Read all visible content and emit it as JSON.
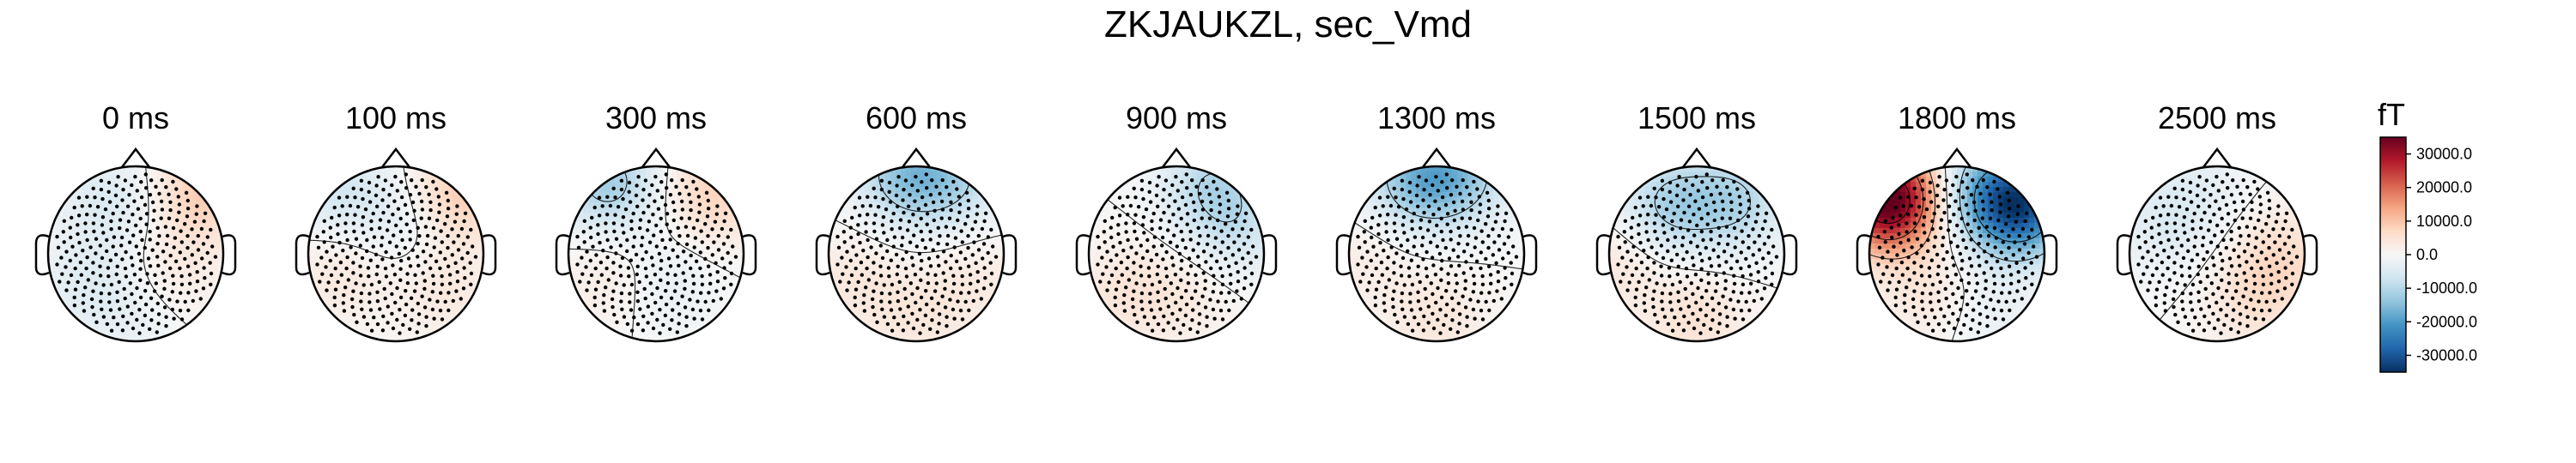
{
  "chart_data": {
    "type": "heatmap",
    "title": "ZKJAUKZL, sec_Vmd",
    "times": [
      "0 ms",
      "100 ms",
      "300 ms",
      "600 ms",
      "900 ms",
      "1300 ms",
      "1500 ms",
      "1800 ms",
      "2500 ms"
    ],
    "colorbar": {
      "unit": "fT",
      "ticks": [
        "30000.0",
        "20000.0",
        "10000.0",
        "0.0",
        "-10000.0",
        "-20000.0",
        "-30000.0"
      ],
      "tick_values": [
        30000,
        20000,
        10000,
        0,
        -10000,
        -20000,
        -30000
      ],
      "range": [
        -35000,
        35000
      ],
      "colormap": "RdBu_r"
    },
    "panels": [
      {
        "time": "0 ms",
        "sources": [
          {
            "x": 0.78,
            "y": -0.72,
            "amp": 9000
          },
          {
            "x": -0.3,
            "y": -0.6,
            "amp": -5000
          },
          {
            "x": 0.45,
            "y": 0.2,
            "amp": 3000
          },
          {
            "x": -0.55,
            "y": 0.35,
            "amp": -4000
          },
          {
            "x": 0.0,
            "y": 0.75,
            "amp": -2500
          }
        ]
      },
      {
        "time": "100 ms",
        "sources": [
          {
            "x": 0.78,
            "y": -0.72,
            "amp": 9000
          },
          {
            "x": -0.62,
            "y": -0.7,
            "amp": -6000
          },
          {
            "x": -0.6,
            "y": 0.2,
            "amp": 4000
          },
          {
            "x": 0.55,
            "y": 0.4,
            "amp": 3500
          },
          {
            "x": 0.0,
            "y": -0.3,
            "amp": -3000
          }
        ]
      },
      {
        "time": "300 ms",
        "sources": [
          {
            "x": -0.55,
            "y": -0.82,
            "amp": -12000
          },
          {
            "x": 0.68,
            "y": -0.72,
            "amp": 8000
          },
          {
            "x": 0.1,
            "y": 0.35,
            "amp": -3000
          },
          {
            "x": -0.55,
            "y": 0.3,
            "amp": 3000
          }
        ]
      },
      {
        "time": "600 ms",
        "sources": [
          {
            "x": -0.1,
            "y": -0.9,
            "amp": -13000
          },
          {
            "x": 0.45,
            "y": -0.85,
            "amp": -8000
          },
          {
            "x": -0.7,
            "y": 0.3,
            "amp": 3500
          },
          {
            "x": 0.0,
            "y": 0.75,
            "amp": 3500
          },
          {
            "x": 0.7,
            "y": 0.3,
            "amp": 3000
          }
        ]
      },
      {
        "time": "900 ms",
        "sources": [
          {
            "x": 0.4,
            "y": -0.8,
            "amp": -9000
          },
          {
            "x": 0.7,
            "y": -0.3,
            "amp": -6000
          },
          {
            "x": -0.6,
            "y": 0.45,
            "amp": 4000
          },
          {
            "x": 0.1,
            "y": 0.5,
            "amp": 3000
          }
        ]
      },
      {
        "time": "1300 ms",
        "sources": [
          {
            "x": -0.2,
            "y": -0.85,
            "amp": -14000
          },
          {
            "x": 0.3,
            "y": -0.9,
            "amp": -10000
          },
          {
            "x": 0.0,
            "y": 0.75,
            "amp": 4000
          },
          {
            "x": -0.8,
            "y": 0.1,
            "amp": 2500
          }
        ]
      },
      {
        "time": "1500 ms",
        "sources": [
          {
            "x": -0.3,
            "y": -0.55,
            "amp": -11000
          },
          {
            "x": 0.45,
            "y": -0.6,
            "amp": -10000
          },
          {
            "x": 0.0,
            "y": 0.75,
            "amp": 5000
          },
          {
            "x": -0.85,
            "y": 0.1,
            "amp": 4000
          }
        ]
      },
      {
        "time": "1800 ms",
        "sources": [
          {
            "x": -0.78,
            "y": -0.62,
            "amp": 38000
          },
          {
            "x": 0.7,
            "y": -0.55,
            "amp": -32000
          },
          {
            "x": 0.2,
            "y": -0.75,
            "amp": -8000
          },
          {
            "x": -0.3,
            "y": 0.5,
            "amp": 4000
          },
          {
            "x": 0.3,
            "y": 0.7,
            "amp": -3000
          }
        ]
      },
      {
        "time": "2500 ms",
        "sources": [
          {
            "x": 0.75,
            "y": 0.05,
            "amp": 6000
          },
          {
            "x": 0.4,
            "y": 0.55,
            "amp": 4500
          },
          {
            "x": -0.6,
            "y": -0.3,
            "amp": -4000
          },
          {
            "x": -0.2,
            "y": -0.75,
            "amp": -3000
          }
        ]
      }
    ]
  }
}
